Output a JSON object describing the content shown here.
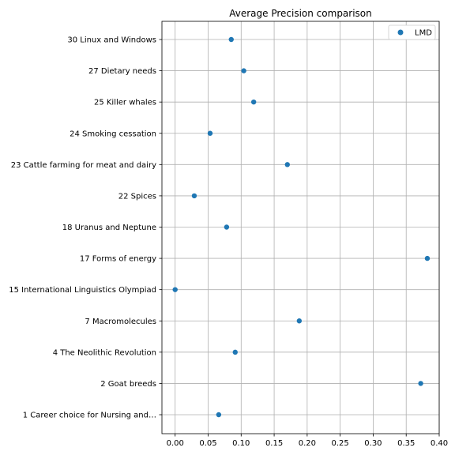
{
  "chart_data": {
    "type": "scatter",
    "title": "Average Precision comparison",
    "xlabel": "",
    "ylabel": "",
    "xlim": [
      -0.02,
      0.4
    ],
    "x_ticks": [
      0.0,
      0.05,
      0.1,
      0.15,
      0.2,
      0.25,
      0.3,
      0.35,
      0.4
    ],
    "x_tick_labels": [
      "0.00",
      "0.05",
      "0.10",
      "0.15",
      "0.20",
      "0.25",
      "0.30",
      "0.35",
      "0.40"
    ],
    "categories": [
      "1 Career choice for Nursing and…",
      "2 Goat breeds",
      "4 The Neolithic Revolution",
      "7 Macromolecules",
      "15 International Linguistics Olympiad",
      "17 Forms of energy",
      "18 Uranus and Neptune",
      "22 Spices",
      "23 Cattle farming for meat and dairy",
      "24 Smoking cessation",
      "25 Killer whales",
      "27 Dietary needs",
      "30 Linux and Windows"
    ],
    "series": [
      {
        "name": "LMD",
        "color": "#1f77b4",
        "values": [
          0.066,
          0.372,
          0.091,
          0.188,
          0.0,
          0.382,
          0.078,
          0.029,
          0.17,
          0.053,
          0.119,
          0.104,
          0.085
        ]
      }
    ],
    "grid": true,
    "legend_position": "top-right"
  }
}
